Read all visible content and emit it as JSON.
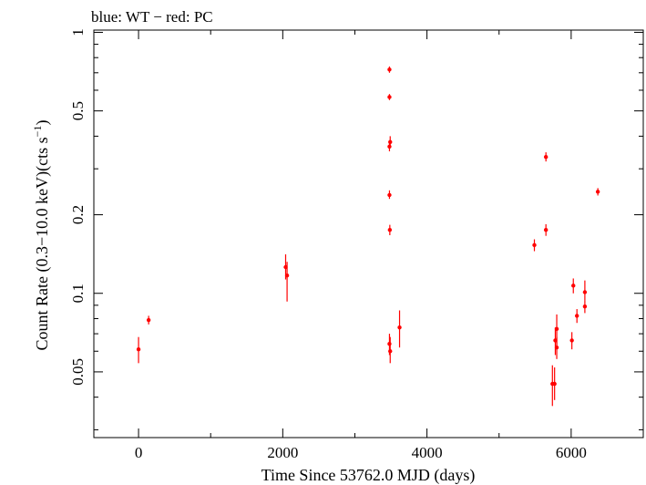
{
  "chart_data": {
    "type": "scatter",
    "title": "blue: WT − red: PC",
    "xlabel": "Time Since 53762.0 MJD (days)",
    "ylabel_main": "Count Rate (0.3−10.0 keV)(cts s",
    "ylabel_sup": "−1",
    "ylabel_end": ")",
    "xlim": [
      -620,
      7000
    ],
    "ylim": [
      0.028,
      1.02
    ],
    "yscale": "log",
    "x_ticks": [
      0,
      2000,
      4000,
      6000
    ],
    "x_tick_labels": [
      "0",
      "2000",
      "4000",
      "6000"
    ],
    "x_minor_ticks": [
      1000,
      3000,
      5000
    ],
    "y_ticks": [
      0.05,
      0.1,
      0.2,
      0.5,
      1
    ],
    "y_tick_labels": [
      "0.05",
      "0.1",
      "0.2",
      "0.5",
      "1"
    ],
    "y_minor_ticks": [
      0.03,
      0.04,
      0.06,
      0.07,
      0.08,
      0.09,
      0.3,
      0.4,
      0.6,
      0.7,
      0.8,
      0.9
    ],
    "grid": false,
    "series": [
      {
        "name": "PC",
        "color": "#ff0000",
        "points": [
          {
            "x": 0,
            "y": 0.061,
            "lo": 0.054,
            "hi": 0.068
          },
          {
            "x": 140,
            "y": 0.079,
            "lo": 0.076,
            "hi": 0.082
          },
          {
            "x": 2040,
            "y": 0.126,
            "lo": 0.113,
            "hi": 0.141
          },
          {
            "x": 2060,
            "y": 0.117,
            "lo": 0.093,
            "hi": 0.132
          },
          {
            "x": 3480,
            "y": 0.72,
            "lo": 0.7,
            "hi": 0.74
          },
          {
            "x": 3480,
            "y": 0.565,
            "lo": 0.55,
            "hi": 0.58
          },
          {
            "x": 3490,
            "y": 0.38,
            "lo": 0.36,
            "hi": 0.4
          },
          {
            "x": 3480,
            "y": 0.365,
            "lo": 0.35,
            "hi": 0.38
          },
          {
            "x": 3480,
            "y": 0.238,
            "lo": 0.23,
            "hi": 0.248
          },
          {
            "x": 3485,
            "y": 0.175,
            "lo": 0.167,
            "hi": 0.183
          },
          {
            "x": 3480,
            "y": 0.064,
            "lo": 0.058,
            "hi": 0.07
          },
          {
            "x": 3490,
            "y": 0.06,
            "lo": 0.054,
            "hi": 0.068
          },
          {
            "x": 3620,
            "y": 0.074,
            "lo": 0.062,
            "hi": 0.086
          },
          {
            "x": 5490,
            "y": 0.153,
            "lo": 0.145,
            "hi": 0.161
          },
          {
            "x": 5650,
            "y": 0.333,
            "lo": 0.32,
            "hi": 0.347
          },
          {
            "x": 5650,
            "y": 0.175,
            "lo": 0.166,
            "hi": 0.184
          },
          {
            "x": 5740,
            "y": 0.045,
            "lo": 0.037,
            "hi": 0.053
          },
          {
            "x": 5770,
            "y": 0.045,
            "lo": 0.039,
            "hi": 0.052
          },
          {
            "x": 5780,
            "y": 0.066,
            "lo": 0.058,
            "hi": 0.074
          },
          {
            "x": 5800,
            "y": 0.073,
            "lo": 0.063,
            "hi": 0.083
          },
          {
            "x": 5800,
            "y": 0.062,
            "lo": 0.056,
            "hi": 0.068
          },
          {
            "x": 6010,
            "y": 0.066,
            "lo": 0.061,
            "hi": 0.071
          },
          {
            "x": 6030,
            "y": 0.107,
            "lo": 0.1,
            "hi": 0.114
          },
          {
            "x": 6080,
            "y": 0.082,
            "lo": 0.077,
            "hi": 0.087
          },
          {
            "x": 6190,
            "y": 0.101,
            "lo": 0.094,
            "hi": 0.112
          },
          {
            "x": 6190,
            "y": 0.089,
            "lo": 0.084,
            "hi": 0.094
          },
          {
            "x": 6370,
            "y": 0.245,
            "lo": 0.237,
            "hi": 0.253
          }
        ]
      }
    ]
  }
}
